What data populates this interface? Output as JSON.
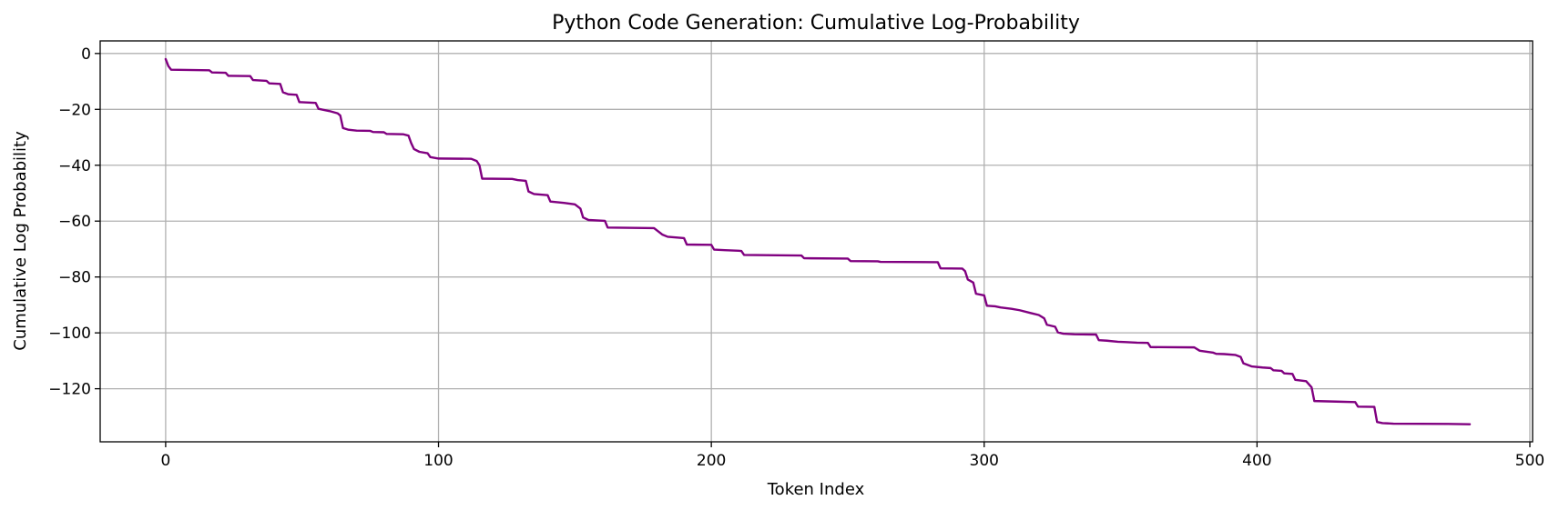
{
  "chart_data": {
    "type": "line",
    "title": "Python Code Generation: Cumulative Log-Probability",
    "xlabel": "Token Index",
    "ylabel": "Cumulative Log Probability",
    "xlim": [
      -24,
      501
    ],
    "ylim": [
      -139,
      4.5
    ],
    "xticks": [
      0,
      100,
      200,
      300,
      400,
      500
    ],
    "yticks": [
      0,
      -20,
      -40,
      -60,
      -80,
      -100,
      -120
    ],
    "xtick_labels": [
      "0",
      "100",
      "200",
      "300",
      "400",
      "500"
    ],
    "ytick_labels": [
      "0",
      "−20",
      "−40",
      "−60",
      "−80",
      "−100",
      "−120"
    ],
    "grid": true,
    "series": [
      {
        "color": "#800080",
        "points": [
          [
            0,
            -2
          ],
          [
            1,
            -4.5
          ],
          [
            2,
            -5.8
          ],
          [
            16,
            -6
          ],
          [
            17,
            -6.8
          ],
          [
            22,
            -6.9
          ],
          [
            23,
            -8
          ],
          [
            31,
            -8.1
          ],
          [
            32,
            -9.5
          ],
          [
            37,
            -9.8
          ],
          [
            38,
            -10.7
          ],
          [
            42,
            -10.9
          ],
          [
            43,
            -13.9
          ],
          [
            45,
            -14.6
          ],
          [
            48,
            -14.8
          ],
          [
            49,
            -17.4
          ],
          [
            55,
            -17.7
          ],
          [
            56,
            -19.8
          ],
          [
            60,
            -20.6
          ],
          [
            63,
            -21.4
          ],
          [
            64,
            -22.2
          ],
          [
            65,
            -26.7
          ],
          [
            67,
            -27.3
          ],
          [
            70,
            -27.6
          ],
          [
            75,
            -27.7
          ],
          [
            76,
            -28.1
          ],
          [
            80,
            -28.2
          ],
          [
            81,
            -28.8
          ],
          [
            87,
            -28.9
          ],
          [
            89,
            -29.4
          ],
          [
            90,
            -32.1
          ],
          [
            91,
            -34.2
          ],
          [
            93,
            -35.2
          ],
          [
            96,
            -35.7
          ],
          [
            97,
            -37.1
          ],
          [
            100,
            -37.6
          ],
          [
            112,
            -37.7
          ],
          [
            114,
            -38.5
          ],
          [
            115,
            -40
          ],
          [
            116,
            -44.8
          ],
          [
            127,
            -44.9
          ],
          [
            129,
            -45.3
          ],
          [
            132,
            -45.6
          ],
          [
            133,
            -49.4
          ],
          [
            135,
            -50.3
          ],
          [
            140,
            -50.7
          ],
          [
            141,
            -53
          ],
          [
            146,
            -53.5
          ],
          [
            150,
            -54
          ],
          [
            152,
            -55.5
          ],
          [
            153,
            -58.7
          ],
          [
            155,
            -59.6
          ],
          [
            161,
            -59.9
          ],
          [
            162,
            -62.3
          ],
          [
            179,
            -62.5
          ],
          [
            182,
            -64.8
          ],
          [
            184,
            -65.6
          ],
          [
            189,
            -66
          ],
          [
            190,
            -66.1
          ],
          [
            191,
            -68.4
          ],
          [
            200,
            -68.5
          ],
          [
            201,
            -70.2
          ],
          [
            205,
            -70.4
          ],
          [
            210,
            -70.6
          ],
          [
            211,
            -70.7
          ],
          [
            212,
            -72.1
          ],
          [
            233,
            -72.3
          ],
          [
            234,
            -73.3
          ],
          [
            250,
            -73.4
          ],
          [
            251,
            -74.3
          ],
          [
            261,
            -74.4
          ],
          [
            262,
            -74.6
          ],
          [
            283,
            -74.7
          ],
          [
            284,
            -76.9
          ],
          [
            292,
            -77
          ],
          [
            293,
            -77.9
          ],
          [
            294,
            -80.9
          ],
          [
            296,
            -82
          ],
          [
            297,
            -86
          ],
          [
            300,
            -86.6
          ],
          [
            301,
            -90.3
          ],
          [
            304,
            -90.5
          ],
          [
            306,
            -90.9
          ],
          [
            310,
            -91.4
          ],
          [
            313,
            -91.9
          ],
          [
            317,
            -92.9
          ],
          [
            320,
            -93.6
          ],
          [
            322,
            -94.8
          ],
          [
            323,
            -97.1
          ],
          [
            326,
            -97.8
          ],
          [
            327,
            -99.8
          ],
          [
            329,
            -100.3
          ],
          [
            333,
            -100.5
          ],
          [
            341,
            -100.6
          ],
          [
            342,
            -102.6
          ],
          [
            345,
            -102.8
          ],
          [
            349,
            -103.2
          ],
          [
            352,
            -103.3
          ],
          [
            356,
            -103.5
          ],
          [
            360,
            -103.6
          ],
          [
            361,
            -105.1
          ],
          [
            377,
            -105.2
          ],
          [
            379,
            -106.4
          ],
          [
            384,
            -107.1
          ],
          [
            385,
            -107.5
          ],
          [
            388,
            -107.6
          ],
          [
            392,
            -107.9
          ],
          [
            394,
            -108.6
          ],
          [
            395,
            -110.9
          ],
          [
            398,
            -112
          ],
          [
            402,
            -112.4
          ],
          [
            405,
            -112.6
          ],
          [
            406,
            -113.4
          ],
          [
            409,
            -113.6
          ],
          [
            410,
            -114.5
          ],
          [
            413,
            -114.7
          ],
          [
            414,
            -116.8
          ],
          [
            418,
            -117.3
          ],
          [
            420,
            -119.5
          ],
          [
            421,
            -124.4
          ],
          [
            429,
            -124.6
          ],
          [
            436,
            -124.8
          ],
          [
            437,
            -126.4
          ],
          [
            443,
            -126.5
          ],
          [
            444,
            -131.9
          ],
          [
            446,
            -132.3
          ],
          [
            450,
            -132.5
          ],
          [
            470,
            -132.6
          ],
          [
            478,
            -132.7
          ]
        ]
      }
    ]
  }
}
